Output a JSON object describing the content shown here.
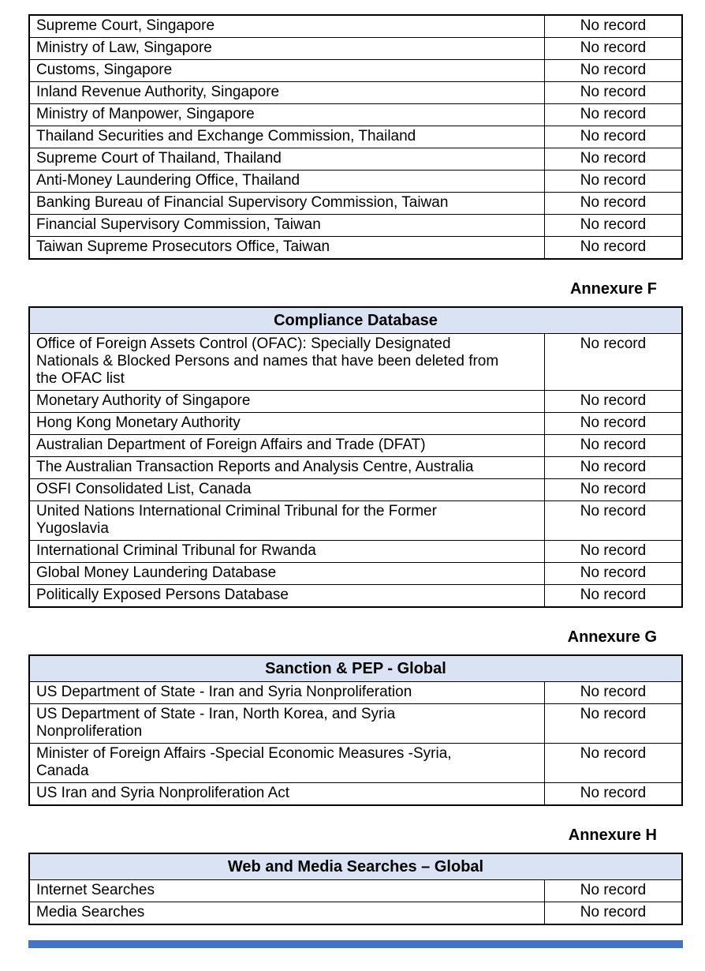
{
  "page": {
    "background": "#ffffff",
    "border_color": "#000000",
    "header_fill": "#dae3f3",
    "bottom_bar_color": "#4472c4",
    "result_value": "No record"
  },
  "tables": [
    {
      "rows": [
        {
          "source": "Supreme Court, Singapore",
          "result": "No record"
        },
        {
          "source": "Ministry of Law, Singapore",
          "result": "No record"
        },
        {
          "source": "Customs, Singapore",
          "result": "No record"
        },
        {
          "source": "Inland Revenue Authority, Singapore",
          "result": "No record"
        },
        {
          "source": "Ministry of Manpower, Singapore",
          "result": "No record"
        },
        {
          "source": "Thailand Securities and Exchange Commission, Thailand",
          "result": "No record"
        },
        {
          "source": "Supreme Court of Thailand, Thailand",
          "result": "No record"
        },
        {
          "source": "Anti-Money Laundering Office, Thailand",
          "result": "No record"
        },
        {
          "source": "Banking Bureau of Financial Supervisory Commission, Taiwan",
          "result": "No record"
        },
        {
          "source": "Financial Supervisory Commission, Taiwan",
          "result": "No record"
        },
        {
          "source": "Taiwan Supreme Prosecutors Office, Taiwan",
          "result": "No record"
        }
      ]
    },
    {
      "annexure_label": "Annexure F",
      "title": "Compliance Database",
      "rows": [
        {
          "source": "Office of Foreign Assets Control (OFAC): Specially Designated\nNationals & Blocked Persons and names that have been deleted from\nthe OFAC list",
          "result": "No record"
        },
        {
          "source": "Monetary Authority of Singapore",
          "result": "No record"
        },
        {
          "source": "Hong Kong Monetary Authority",
          "result": "No record"
        },
        {
          "source": "Australian Department of Foreign Affairs and Trade (DFAT)",
          "result": "No record"
        },
        {
          "source": "The Australian Transaction Reports and Analysis Centre, Australia",
          "result": "No record"
        },
        {
          "source": "OSFI Consolidated List, Canada",
          "result": "No record"
        },
        {
          "source": "United Nations International Criminal Tribunal for the Former\nYugoslavia",
          "result": "No record"
        },
        {
          "source": "International Criminal Tribunal for Rwanda",
          "result": "No record"
        },
        {
          "source": "Global Money Laundering Database",
          "result": "No record"
        },
        {
          "source": "Politically Exposed Persons Database",
          "result": "No record"
        }
      ]
    },
    {
      "annexure_label": "Annexure G",
      "title": "Sanction & PEP - Global",
      "rows": [
        {
          "source": "US Department of State - Iran and Syria Nonproliferation",
          "result": "No record"
        },
        {
          "source": "US Department of State - Iran, North Korea, and Syria\nNonproliferation",
          "result": "No record"
        },
        {
          "source": "Minister of Foreign Affairs -Special Economic Measures -Syria,\nCanada",
          "result": "No record"
        },
        {
          "source": "US Iran and Syria Nonproliferation Act",
          "result": "No record"
        }
      ]
    },
    {
      "annexure_label": "Annexure H",
      "title": "Web and Media Searches – Global",
      "rows": [
        {
          "source": "Internet Searches",
          "result": "No record"
        },
        {
          "source": "Media Searches",
          "result": "No record"
        }
      ]
    }
  ]
}
